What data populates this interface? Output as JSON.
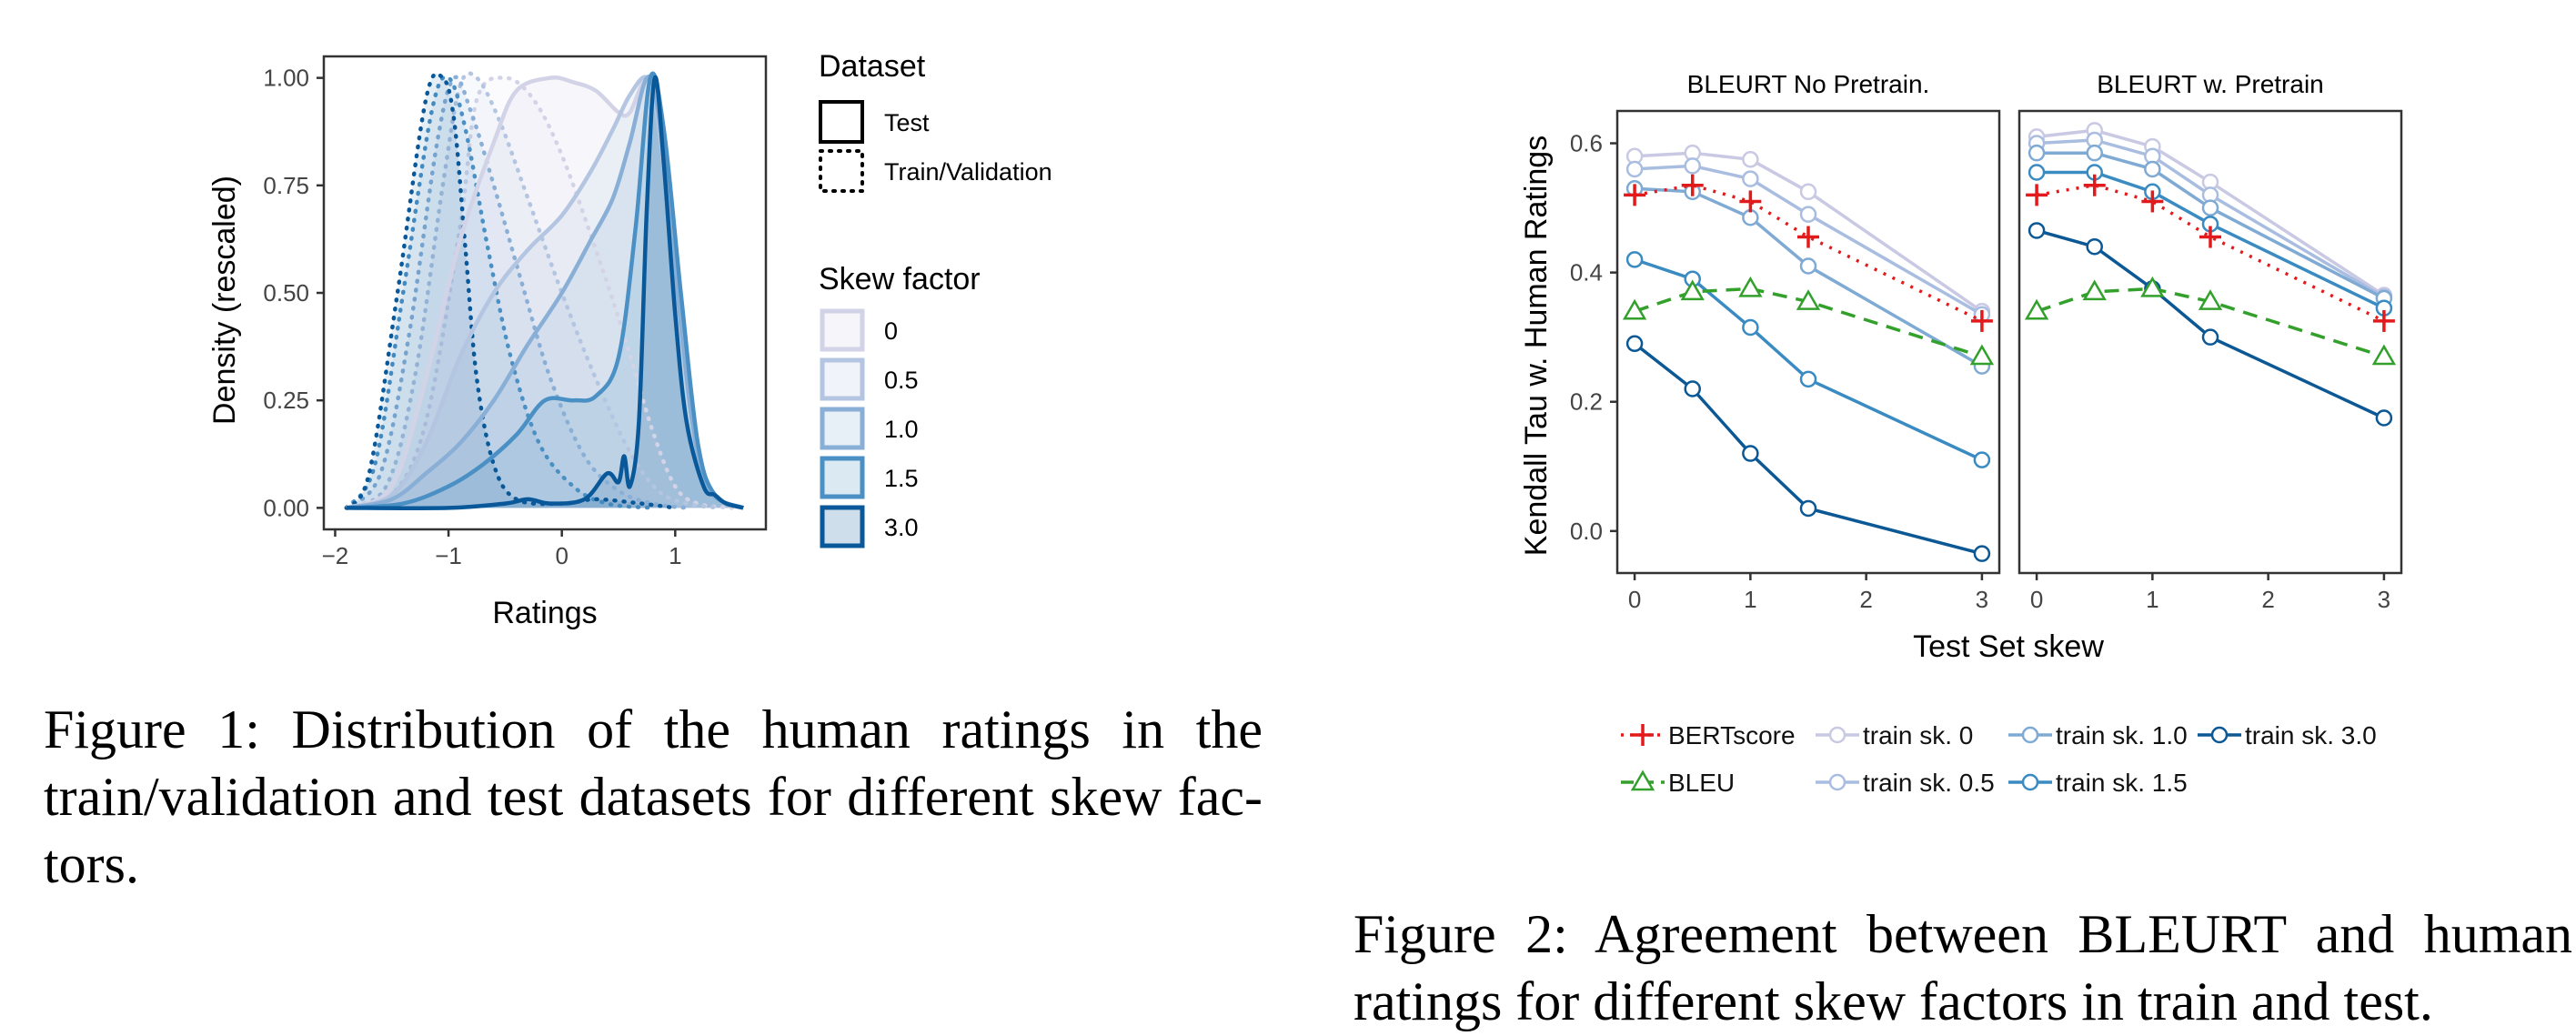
{
  "figure1": {
    "chart_data": {
      "type": "area",
      "title": "",
      "xlabel": "Ratings",
      "ylabel": "Density (rescaled)",
      "xlim": [
        -2.1,
        1.8
      ],
      "ylim": [
        -0.05,
        1.05
      ],
      "x_ticks": [
        "−2",
        "−1",
        "0",
        "1"
      ],
      "y_ticks": [
        "0.00",
        "0.25",
        "0.50",
        "0.75",
        "1.00"
      ],
      "legend_placement": "right",
      "legend": {
        "dataset_title": "Dataset",
        "dataset_items": [
          "Test",
          "Train/Validation"
        ],
        "skew_title": "Skew factor",
        "skew_items": [
          "0",
          "0.5",
          "1.0",
          "1.5",
          "3.0"
        ]
      },
      "colors": {
        "0": "#d3d3e8",
        "0.5": "#b3c5e0",
        "1.0": "#89afd6",
        "1.5": "#4a90c4",
        "3.0": "#08589a"
      },
      "series_test": [
        {
          "name": "0",
          "peak": 0.8,
          "points": [
            [
              -1.9,
              0
            ],
            [
              -1.5,
              0.05
            ],
            [
              -1.2,
              0.3
            ],
            [
              -0.9,
              0.62
            ],
            [
              -0.6,
              0.85
            ],
            [
              -0.4,
              0.97
            ],
            [
              -0.1,
              1.0
            ],
            [
              0.1,
              0.99
            ],
            [
              0.3,
              0.97
            ],
            [
              0.5,
              0.92
            ],
            [
              0.6,
              0.92
            ],
            [
              0.75,
              1.0
            ],
            [
              0.85,
              0.9
            ],
            [
              1.0,
              0.55
            ],
            [
              1.15,
              0.2
            ],
            [
              1.3,
              0.04
            ],
            [
              1.6,
              0
            ]
          ]
        },
        {
          "name": "0.5",
          "peak": 0.8,
          "points": [
            [
              -1.9,
              0
            ],
            [
              -1.5,
              0.03
            ],
            [
              -1.2,
              0.15
            ],
            [
              -0.9,
              0.35
            ],
            [
              -0.6,
              0.5
            ],
            [
              -0.3,
              0.6
            ],
            [
              0.0,
              0.68
            ],
            [
              0.25,
              0.78
            ],
            [
              0.45,
              0.88
            ],
            [
              0.6,
              0.96
            ],
            [
              0.75,
              1.0
            ],
            [
              0.85,
              0.9
            ],
            [
              1.0,
              0.55
            ],
            [
              1.15,
              0.2
            ],
            [
              1.3,
              0.04
            ],
            [
              1.6,
              0
            ]
          ]
        },
        {
          "name": "1.0",
          "peak": 0.8,
          "points": [
            [
              -1.9,
              0
            ],
            [
              -1.5,
              0.02
            ],
            [
              -1.2,
              0.08
            ],
            [
              -0.9,
              0.15
            ],
            [
              -0.6,
              0.25
            ],
            [
              -0.3,
              0.38
            ],
            [
              0.0,
              0.5
            ],
            [
              0.25,
              0.62
            ],
            [
              0.45,
              0.72
            ],
            [
              0.6,
              0.85
            ],
            [
              0.75,
              1.0
            ],
            [
              0.85,
              0.92
            ],
            [
              1.0,
              0.55
            ],
            [
              1.15,
              0.2
            ],
            [
              1.3,
              0.04
            ],
            [
              1.6,
              0
            ]
          ]
        },
        {
          "name": "1.5",
          "peak": 0.8,
          "points": [
            [
              -1.9,
              0
            ],
            [
              -1.4,
              0.01
            ],
            [
              -1.0,
              0.05
            ],
            [
              -0.7,
              0.1
            ],
            [
              -0.4,
              0.17
            ],
            [
              -0.15,
              0.25
            ],
            [
              0.1,
              0.25
            ],
            [
              0.3,
              0.26
            ],
            [
              0.5,
              0.35
            ],
            [
              0.65,
              0.65
            ],
            [
              0.78,
              1.0
            ],
            [
              0.9,
              0.88
            ],
            [
              1.05,
              0.5
            ],
            [
              1.2,
              0.15
            ],
            [
              1.35,
              0.03
            ],
            [
              1.6,
              0
            ]
          ]
        },
        {
          "name": "3.0",
          "peak": 0.8,
          "points": [
            [
              -1.9,
              0
            ],
            [
              -1.0,
              0.0
            ],
            [
              -0.5,
              0.01
            ],
            [
              -0.3,
              0.02
            ],
            [
              -0.1,
              0.01
            ],
            [
              0.2,
              0.02
            ],
            [
              0.4,
              0.08
            ],
            [
              0.5,
              0.06
            ],
            [
              0.55,
              0.12
            ],
            [
              0.6,
              0.05
            ],
            [
              0.68,
              0.2
            ],
            [
              0.75,
              0.7
            ],
            [
              0.82,
              1.0
            ],
            [
              0.9,
              0.8
            ],
            [
              1.0,
              0.45
            ],
            [
              1.1,
              0.2
            ],
            [
              1.25,
              0.05
            ],
            [
              1.35,
              0.03
            ],
            [
              1.45,
              0.01
            ],
            [
              1.6,
              0
            ]
          ]
        }
      ],
      "series_train": [
        {
          "name": "0",
          "points": [
            [
              -1.9,
              0
            ],
            [
              -1.5,
              0.03
            ],
            [
              -1.2,
              0.2
            ],
            [
              -0.9,
              0.65
            ],
            [
              -0.75,
              0.95
            ],
            [
              -0.5,
              1.0
            ],
            [
              -0.25,
              0.95
            ],
            [
              0.0,
              0.82
            ],
            [
              0.3,
              0.6
            ],
            [
              0.55,
              0.4
            ],
            [
              0.8,
              0.18
            ],
            [
              1.0,
              0.05
            ],
            [
              1.2,
              0.01
            ],
            [
              1.5,
              0
            ]
          ]
        },
        {
          "name": "0.5",
          "points": [
            [
              -1.9,
              0
            ],
            [
              -1.55,
              0.05
            ],
            [
              -1.3,
              0.3
            ],
            [
              -1.05,
              0.75
            ],
            [
              -0.9,
              0.98
            ],
            [
              -0.75,
              1.0
            ],
            [
              -0.55,
              0.9
            ],
            [
              -0.3,
              0.72
            ],
            [
              0.0,
              0.5
            ],
            [
              0.3,
              0.3
            ],
            [
              0.6,
              0.13
            ],
            [
              0.85,
              0.04
            ],
            [
              1.1,
              0.01
            ],
            [
              1.4,
              0
            ]
          ]
        },
        {
          "name": "1.0",
          "points": [
            [
              -1.9,
              0
            ],
            [
              -1.6,
              0.08
            ],
            [
              -1.35,
              0.4
            ],
            [
              -1.1,
              0.85
            ],
            [
              -0.95,
              1.0
            ],
            [
              -0.8,
              0.92
            ],
            [
              -0.6,
              0.75
            ],
            [
              -0.35,
              0.52
            ],
            [
              -0.1,
              0.3
            ],
            [
              0.2,
              0.12
            ],
            [
              0.5,
              0.04
            ],
            [
              0.8,
              0.01
            ],
            [
              1.1,
              0
            ]
          ]
        },
        {
          "name": "1.5",
          "points": [
            [
              -1.9,
              0
            ],
            [
              -1.65,
              0.1
            ],
            [
              -1.4,
              0.5
            ],
            [
              -1.15,
              0.92
            ],
            [
              -1.0,
              1.0
            ],
            [
              -0.85,
              0.88
            ],
            [
              -0.65,
              0.6
            ],
            [
              -0.45,
              0.35
            ],
            [
              -0.2,
              0.15
            ],
            [
              0.1,
              0.05
            ],
            [
              0.4,
              0.01
            ],
            [
              0.8,
              0
            ]
          ]
        },
        {
          "name": "3.0",
          "points": [
            [
              -1.9,
              0
            ],
            [
              -1.7,
              0.08
            ],
            [
              -1.45,
              0.5
            ],
            [
              -1.2,
              0.95
            ],
            [
              -1.05,
              1.0
            ],
            [
              -0.95,
              0.9
            ],
            [
              -0.85,
              0.6
            ],
            [
              -0.75,
              0.3
            ],
            [
              -0.6,
              0.1
            ],
            [
              -0.4,
              0.02
            ],
            [
              0.0,
              0.01
            ],
            [
              0.3,
              0.02
            ],
            [
              0.7,
              0.01
            ],
            [
              1.0,
              0
            ]
          ]
        }
      ]
    },
    "caption_lines": [
      "Figure 1:  Distribution of the human ratings in the",
      "train/validation and test datasets for different skew fac-",
      "tors."
    ]
  },
  "figure2": {
    "chart_data": [
      {
        "type": "line",
        "title": "BLEURT No Pretrain.",
        "xlabel": "Test Set skew",
        "ylabel": "Kendall Tau w. Human Ratings",
        "x": [
          0,
          0.5,
          1,
          1.5,
          3
        ],
        "x_ticks": [
          "0",
          "1",
          "2",
          "3"
        ],
        "y_ticks": [
          "0.0",
          "0.2",
          "0.4",
          "0.6"
        ],
        "xlim": [
          -0.15,
          3.15
        ],
        "ylim": [
          -0.065,
          0.65
        ],
        "series": [
          {
            "name": "train sk. 0",
            "values": [
              0.58,
              0.585,
              0.575,
              0.525,
              0.34
            ]
          },
          {
            "name": "train sk. 0.5",
            "values": [
              0.56,
              0.565,
              0.545,
              0.49,
              0.335
            ]
          },
          {
            "name": "train sk. 1.0",
            "values": [
              0.53,
              0.525,
              0.485,
              0.41,
              0.255
            ]
          },
          {
            "name": "train sk. 1.5",
            "values": [
              0.42,
              0.39,
              0.315,
              0.235,
              0.11
            ]
          },
          {
            "name": "train sk. 3.0",
            "values": [
              0.29,
              0.22,
              0.12,
              0.035,
              -0.035
            ]
          },
          {
            "name": "BERTscore",
            "values": [
              0.52,
              0.535,
              0.51,
              0.455,
              0.325
            ]
          },
          {
            "name": "BLEU",
            "values": [
              0.34,
              0.37,
              0.375,
              0.355,
              0.27
            ]
          }
        ]
      },
      {
        "type": "line",
        "title": "BLEURT w. Pretrain",
        "xlabel": "Test Set skew",
        "ylabel": "Kendall Tau w. Human Ratings",
        "x": [
          0,
          0.5,
          1,
          1.5,
          3
        ],
        "x_ticks": [
          "0",
          "1",
          "2",
          "3"
        ],
        "xlim": [
          -0.15,
          3.15
        ],
        "ylim": [
          -0.065,
          0.65
        ],
        "series": [
          {
            "name": "train sk. 0",
            "values": [
              0.61,
              0.62,
              0.595,
              0.54,
              0.365
            ]
          },
          {
            "name": "train sk. 0.5",
            "values": [
              0.6,
              0.605,
              0.58,
              0.52,
              0.362
            ]
          },
          {
            "name": "train sk. 1.0",
            "values": [
              0.585,
              0.585,
              0.56,
              0.5,
              0.36
            ]
          },
          {
            "name": "train sk. 1.5",
            "values": [
              0.555,
              0.555,
              0.525,
              0.475,
              0.345
            ]
          },
          {
            "name": "train sk. 3.0",
            "values": [
              0.465,
              0.44,
              0.375,
              0.3,
              0.175
            ]
          },
          {
            "name": "BERTscore",
            "values": [
              0.52,
              0.535,
              0.51,
              0.455,
              0.325
            ]
          },
          {
            "name": "BLEU",
            "values": [
              0.34,
              0.37,
              0.375,
              0.355,
              0.27
            ]
          }
        ]
      }
    ],
    "legend_items": [
      "BERTscore",
      "train sk. 0",
      "train sk. 1.0",
      "train sk. 3.0",
      "BLEU",
      "train sk. 0.5",
      "train sk. 1.5"
    ],
    "colors": {
      "train sk. 0": "#c9c9e4",
      "train sk. 0.5": "#a9bde0",
      "train sk. 1.0": "#7faad4",
      "train sk. 1.5": "#3a8bc2",
      "train sk. 3.0": "#0b5895",
      "BERTscore": "#e31a1c",
      "BLEU": "#33a02c"
    },
    "caption_lines": [
      "Figure 2:  Agreement between BLEURT and human",
      "ratings for different skew factors in train and test."
    ]
  }
}
